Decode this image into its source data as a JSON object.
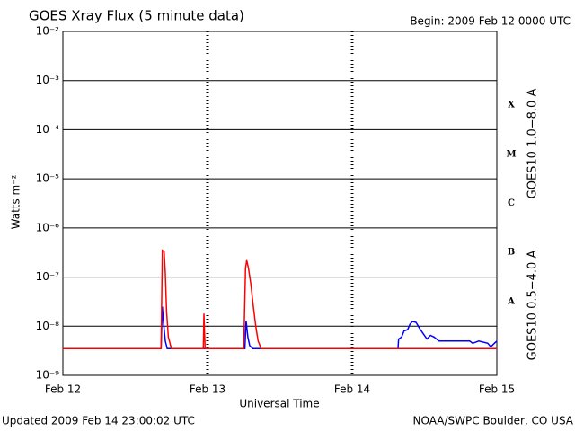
{
  "chart_data": {
    "type": "line",
    "title": "GOES Xray Flux (5 minute data)",
    "subtitle": "Begin:  2009 Feb 12 0000 UTC",
    "y_label": "Watts m⁻²",
    "x_label": "Universal Time",
    "footer_left": "Updated 2009 Feb 14 23:00:02 UTC",
    "footer_right": "NOAA/SWPC Boulder, CO USA",
    "log_scale": true,
    "grid": true,
    "xlim": [
      0,
      72
    ],
    "xticks": [
      {
        "value": 0,
        "label": "Feb 12"
      },
      {
        "value": 24,
        "label": "Feb 13"
      },
      {
        "value": 48,
        "label": "Feb 14"
      },
      {
        "value": 72,
        "label": "Feb 15"
      }
    ],
    "ylim": [
      1e-09,
      0.01
    ],
    "yticks": [
      {
        "value": 1e-09,
        "label": "10⁻⁹"
      },
      {
        "value": 1e-08,
        "label": "10⁻⁸"
      },
      {
        "value": 1e-07,
        "label": "10⁻⁷"
      },
      {
        "value": 1e-06,
        "label": "10⁻⁶"
      },
      {
        "value": 1e-05,
        "label": "10⁻⁵"
      },
      {
        "value": 0.0001,
        "label": "10⁻⁴"
      },
      {
        "value": 0.001,
        "label": "10⁻³"
      },
      {
        "value": 0.01,
        "label": "10⁻²"
      }
    ],
    "flare_classes": [
      "X",
      "M",
      "C",
      "B",
      "A"
    ],
    "series": [
      {
        "name": "GOES10 1.0−8.0 A",
        "color": "#ff0000",
        "x": [
          0,
          16.3,
          16.5,
          16.8,
          17.0,
          17.2,
          17.5,
          18.0,
          23.3,
          23.4,
          23.6,
          30.0,
          30.3,
          30.5,
          30.8,
          31.2,
          31.6,
          32.0,
          32.4,
          32.9,
          72
        ],
        "values": [
          3.5e-09,
          3.5e-09,
          3.5e-07,
          3.3e-07,
          1.2e-07,
          2e-08,
          6e-09,
          3.5e-09,
          3.5e-09,
          1.8e-08,
          3.5e-09,
          3.5e-09,
          1.5e-07,
          2.2e-07,
          1.5e-07,
          7e-08,
          2.5e-08,
          1e-08,
          5e-09,
          3.5e-09,
          3.5e-09
        ]
      },
      {
        "name": "GOES10 0.5−4.0 A",
        "color": "#0000ff",
        "x": [
          0,
          16.3,
          16.5,
          16.7,
          17.0,
          17.3,
          30.2,
          30.4,
          30.7,
          31.0,
          31.5,
          55.6,
          55.7,
          56.2,
          56.6,
          57.2,
          57.6,
          58.0,
          58.6,
          59.2,
          59.8,
          60.4,
          61.0,
          61.6,
          62.4,
          65.0,
          67.5,
          68.0,
          69.0,
          70.5,
          71.0,
          71.6,
          72
        ],
        "values": [
          3.5e-09,
          3.5e-09,
          2.5e-08,
          1.2e-08,
          5e-09,
          3.5e-09,
          3.5e-09,
          1.3e-08,
          6e-09,
          4e-09,
          3.5e-09,
          3.5e-09,
          5.5e-09,
          6e-09,
          8e-09,
          8.5e-09,
          1.1e-08,
          1.25e-08,
          1.2e-08,
          9e-09,
          7e-09,
          5.5e-09,
          6.5e-09,
          6e-09,
          5e-09,
          5e-09,
          5e-09,
          4.5e-09,
          5e-09,
          4.5e-09,
          3.8e-09,
          4.5e-09,
          5e-09
        ]
      }
    ]
  }
}
